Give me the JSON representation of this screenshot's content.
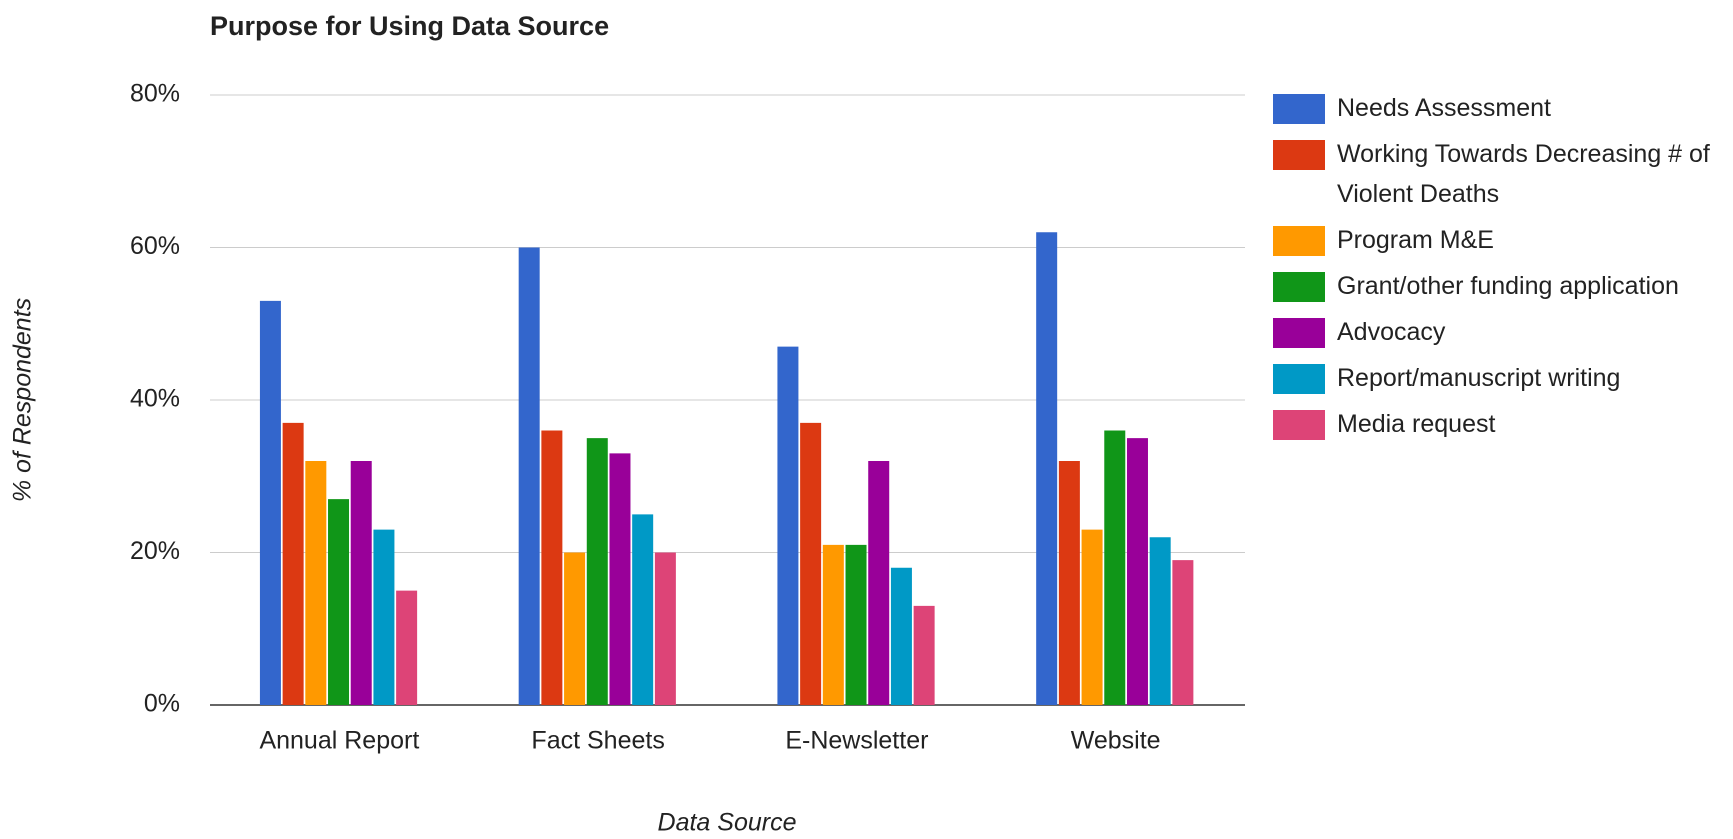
{
  "chart_data": {
    "type": "bar",
    "title": "Purpose for Using Data Source",
    "x_label": "Data Source",
    "y_label": "% of Respondents",
    "categories": [
      "Annual Report",
      "Fact Sheets",
      "E-Newsletter",
      "Website"
    ],
    "series": [
      {
        "name": "Needs Assessment",
        "color": "#3366cc",
        "values": [
          53,
          60,
          47,
          62
        ]
      },
      {
        "name": "Working Towards Decreasing # of Violent Deaths",
        "color": "#dc3912",
        "values": [
          37,
          36,
          37,
          32
        ]
      },
      {
        "name": "Program M&E",
        "color": "#ff9900",
        "values": [
          32,
          20,
          21,
          23
        ]
      },
      {
        "name": "Grant/other funding application",
        "color": "#109618",
        "values": [
          27,
          35,
          21,
          36
        ]
      },
      {
        "name": "Advocacy",
        "color": "#990099",
        "values": [
          32,
          33,
          32,
          35
        ]
      },
      {
        "name": "Report/manuscript writing",
        "color": "#0099c6",
        "values": [
          23,
          25,
          18,
          22
        ]
      },
      {
        "name": "Media request",
        "color": "#dd4477",
        "values": [
          15,
          20,
          13,
          19
        ]
      }
    ],
    "ylim": [
      0,
      80
    ],
    "yticks": [
      {
        "value": 0,
        "label": "0%"
      },
      {
        "value": 20,
        "label": "20%"
      },
      {
        "value": 40,
        "label": "40%"
      },
      {
        "value": 60,
        "label": "60%"
      },
      {
        "value": 80,
        "label": "80%"
      }
    ],
    "grid": true,
    "legend": "right"
  }
}
